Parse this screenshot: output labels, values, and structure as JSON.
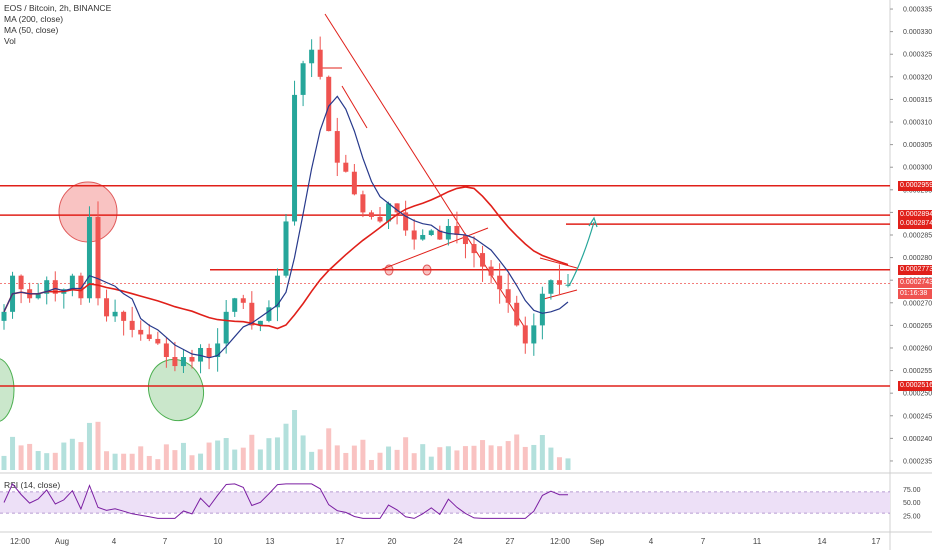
{
  "legend": {
    "symbol": "EOS / Bitcoin, 2h, BINANCE",
    "ma200": "MA (200, close)",
    "ma50": "MA (50, close)",
    "vol": "Vol",
    "rsi": "RSI (14, close)"
  },
  "price_axis": [
    "0.0003350",
    "0.0003300",
    "0.0003250",
    "0.0003200",
    "0.0003150",
    "0.0003100",
    "0.0003050",
    "0.0003000",
    "0.0002950",
    "0.0002900",
    "0.0002850",
    "0.0002800",
    "0.0002750",
    "0.0002700",
    "0.0002650",
    "0.0002600",
    "0.0002550",
    "0.0002500",
    "0.0002450",
    "0.0002400",
    "0.0002350"
  ],
  "rsi_axis": [
    "75.00",
    "50.00",
    "25.00"
  ],
  "time_axis": [
    "12:00",
    "Aug",
    "4",
    "7",
    "10",
    "13",
    "17",
    "20",
    "24",
    "27",
    "12:00",
    "Sep",
    "4",
    "7",
    "11",
    "14",
    "17"
  ],
  "price_tags": [
    {
      "label": "0.0002959",
      "color": "#e0201a"
    },
    {
      "label": "0.0002894",
      "color": "#e0201a"
    },
    {
      "label": "0.0002874",
      "color": "#e0201a"
    },
    {
      "label": "0.0002773",
      "color": "#e0201a"
    },
    {
      "label": "0.0002743",
      "color": "#ef5350"
    },
    {
      "label": "01:16:38",
      "color": "#ef5350"
    },
    {
      "label": "0.0002516",
      "color": "#e0201a"
    }
  ],
  "colors": {
    "up": "#26a69a",
    "down": "#ef5350",
    "ma200": "#e0201a",
    "ma50": "#283a8c",
    "level": "#e0201a",
    "rsi": "#7b1fa2",
    "rsi_band": "#ede0f7"
  },
  "chart_data": {
    "type": "candlestick",
    "symbol": "EOS/BTC",
    "timeframe": "2h",
    "horizontal_levels": [
      0.0002959,
      0.0002894,
      0.0002874,
      0.0002773,
      0.0002516
    ],
    "last_price": 0.0002743,
    "close_series": [
      0.000268,
      0.000276,
      0.000273,
      0.000271,
      0.000272,
      0.000275,
      0.000272,
      0.000273,
      0.000276,
      0.000271,
      0.000289,
      0.000271,
      0.000267,
      0.000268,
      0.000266,
      0.000264,
      0.000263,
      0.000262,
      0.000261,
      0.000258,
      0.000256,
      0.000258,
      0.000257,
      0.00026,
      0.000258,
      0.000261,
      0.000268,
      0.000271,
      0.00027,
      0.000265,
      0.000266,
      0.000269,
      0.000276,
      0.000288,
      0.000316,
      0.000323,
      0.000326,
      0.00032,
      0.000308,
      0.000301,
      0.000299,
      0.000294,
      0.00029,
      0.000289,
      0.000288,
      0.000292,
      0.00029,
      0.000286,
      0.000284,
      0.000285,
      0.000286,
      0.000284,
      0.000287,
      0.000285,
      0.000283,
      0.000281,
      0.000278,
      0.000276,
      0.000273,
      0.00027,
      0.000265,
      0.000261,
      0.000265,
      0.000272,
      0.000275,
      0.000274,
      0.000274
    ],
    "ylim": [
      0.000233,
      0.000337
    ],
    "rsi_range": [
      0,
      100
    ]
  }
}
